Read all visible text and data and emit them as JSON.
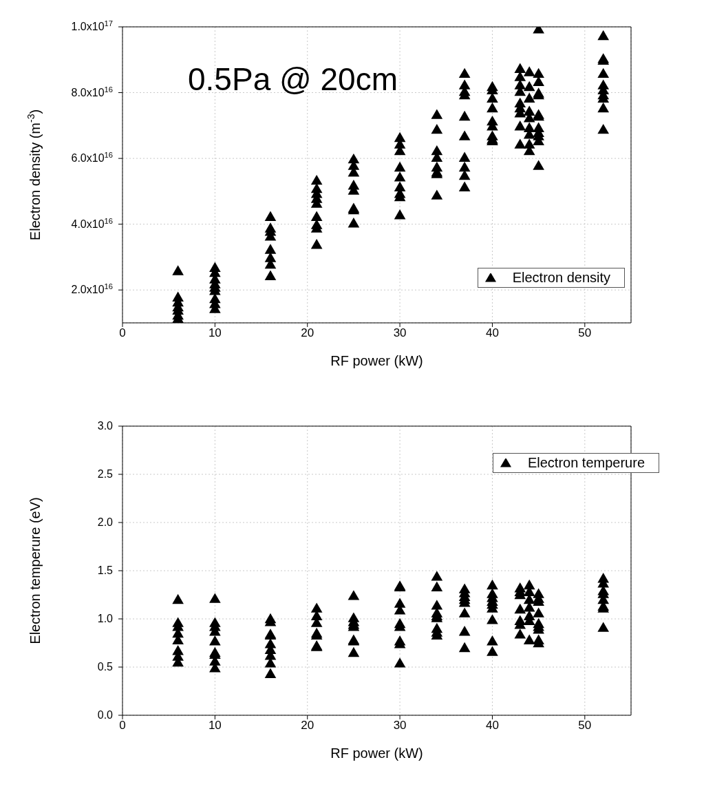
{
  "chart_data": [
    {
      "type": "scatter",
      "xlabel": "RF power (kW)",
      "ylabel": "Electron density (m$^{-3}$)",
      "annotations": [
        "0.5Pa @ 20cm"
      ],
      "xlim": [
        0,
        55
      ],
      "xticks": [
        0,
        10,
        20,
        30,
        40,
        50
      ],
      "ylim": [
        1e+16,
        1e+17
      ],
      "yticks": [
        {
          "value": 2e+16,
          "label": "2.0x10$^{16}$"
        },
        {
          "value": 4e+16,
          "label": "4.0x10$^{16}$"
        },
        {
          "value": 6e+16,
          "label": "6.0x10$^{16}$"
        },
        {
          "value": 8e+16,
          "label": "8.0x10$^{16}$"
        },
        {
          "value": 1e+17,
          "label": "1.0x10$^{17}$"
        }
      ],
      "grid": true,
      "legend": "bottom right",
      "marker": "triangle",
      "series": [
        {
          "name": "Electron density",
          "color": "#000000",
          "x": [
            6,
            6,
            6,
            6,
            6,
            6,
            6,
            10,
            10,
            10,
            10,
            10,
            10,
            10,
            10,
            10,
            16,
            16,
            16,
            16,
            16,
            16,
            16,
            16,
            21,
            21,
            21,
            21,
            21,
            21,
            21,
            21,
            21,
            25,
            25,
            25,
            25,
            25,
            25,
            25,
            25,
            30,
            30,
            30,
            30,
            30,
            30,
            30,
            30,
            30,
            34,
            34,
            34,
            34,
            34,
            34,
            34,
            34,
            37,
            37,
            37,
            37,
            37,
            37,
            37,
            37,
            37,
            37,
            40,
            40,
            40,
            40,
            40,
            40,
            40,
            40,
            40,
            43,
            43,
            43,
            43,
            43,
            43,
            43,
            43,
            43,
            44,
            44,
            44,
            44,
            44,
            44,
            44,
            44,
            44,
            45,
            45,
            45,
            45,
            45,
            45,
            45,
            45,
            45,
            45,
            45,
            45,
            52,
            52,
            52,
            52,
            52,
            52,
            52,
            52,
            52,
            52
          ],
          "values": [
            2.55e+16,
            1.75e+16,
            1.6e+16,
            1.45e+16,
            1.35e+16,
            1.2e+16,
            1.1e+16,
            2.65e+16,
            2.5e+16,
            2.3e+16,
            2.15e+16,
            2.05e+16,
            1.95e+16,
            1.7e+16,
            1.55e+16,
            1.4e+16,
            4.2e+16,
            3.85e+16,
            3.75e+16,
            3.6e+16,
            3.2e+16,
            2.95e+16,
            2.75e+16,
            2.4e+16,
            5.3e+16,
            5.05e+16,
            4.9e+16,
            4.75e+16,
            4.6e+16,
            4.2e+16,
            3.95e+16,
            3.85e+16,
            3.35e+16,
            5.95e+16,
            5.75e+16,
            5.55e+16,
            5.15e+16,
            5e+16,
            4.45e+16,
            4.4e+16,
            4e+16,
            6.6e+16,
            6.4e+16,
            6.2e+16,
            5.7e+16,
            5.4e+16,
            5.1e+16,
            4.9e+16,
            4.8e+16,
            4.25e+16,
            7.3e+16,
            6.85e+16,
            6.2e+16,
            6e+16,
            5.7e+16,
            5.55e+16,
            5.5e+16,
            4.85e+16,
            8.55e+16,
            8.2e+16,
            8e+16,
            7.9e+16,
            7.25e+16,
            6.65e+16,
            6e+16,
            5.7e+16,
            5.45e+16,
            5.1e+16,
            8.15e+16,
            8.05e+16,
            7.8e+16,
            7.5e+16,
            7.1e+16,
            6.95e+16,
            6.65e+16,
            6.55e+16,
            6.5e+16,
            8.7e+16,
            8.45e+16,
            8.2e+16,
            8e+16,
            7.65e+16,
            7.5e+16,
            7.35e+16,
            6.95e+16,
            6.4e+16,
            8.6e+16,
            8.15e+16,
            7.8e+16,
            7.4e+16,
            7.2e+16,
            6.9e+16,
            6.7e+16,
            6.4e+16,
            6.2e+16,
            9.9e+16,
            8.55e+16,
            8.3e+16,
            7.95e+16,
            7.9e+16,
            7.3e+16,
            7.25e+16,
            6.9e+16,
            6.75e+16,
            6.65e+16,
            6.5e+16,
            5.75e+16,
            9.7e+16,
            9e+16,
            8.95e+16,
            8.55e+16,
            8.2e+16,
            8.05e+16,
            7.9e+16,
            7.8e+16,
            7.5e+16,
            6.85e+16
          ]
        }
      ]
    },
    {
      "type": "scatter",
      "xlabel": "RF power (kW)",
      "ylabel": "Electron temperure (eV)",
      "xlim": [
        0,
        55
      ],
      "xticks": [
        0,
        10,
        20,
        30,
        40,
        50
      ],
      "ylim": [
        0,
        3
      ],
      "yticks": [
        {
          "value": 0,
          "label": "0.0"
        },
        {
          "value": 0.5,
          "label": "0.5"
        },
        {
          "value": 1,
          "label": "1.0"
        },
        {
          "value": 1.5,
          "label": "1.5"
        },
        {
          "value": 2,
          "label": "2.0"
        },
        {
          "value": 2.5,
          "label": "2.5"
        },
        {
          "value": 3,
          "label": "3.0"
        }
      ],
      "grid": true,
      "legend": "top right",
      "marker": "triangle",
      "series": [
        {
          "name": "Electron temperure",
          "color": "#000000",
          "x": [
            6,
            6,
            6,
            6,
            6,
            6,
            6,
            6,
            10,
            10,
            10,
            10,
            10,
            10,
            10,
            10,
            10,
            16,
            16,
            16,
            16,
            16,
            16,
            16,
            16,
            16,
            21,
            21,
            21,
            21,
            21,
            21,
            21,
            25,
            25,
            25,
            25,
            25,
            25,
            25,
            25,
            30,
            30,
            30,
            30,
            30,
            30,
            30,
            30,
            30,
            34,
            34,
            34,
            34,
            34,
            34,
            34,
            34,
            34,
            37,
            37,
            37,
            37,
            37,
            37,
            37,
            37,
            40,
            40,
            40,
            40,
            40,
            40,
            40,
            40,
            40,
            43,
            43,
            43,
            43,
            43,
            43,
            43,
            44,
            44,
            44,
            44,
            44,
            44,
            44,
            45,
            45,
            45,
            45,
            45,
            45,
            45,
            45,
            45,
            52,
            52,
            52,
            52,
            52,
            52,
            52,
            52
          ],
          "values": [
            1.19,
            0.95,
            0.91,
            0.84,
            0.77,
            0.66,
            0.6,
            0.54,
            1.2,
            0.95,
            0.91,
            0.86,
            0.76,
            0.64,
            0.62,
            0.55,
            0.48,
            0.99,
            0.96,
            0.83,
            0.82,
            0.73,
            0.67,
            0.61,
            0.53,
            0.42,
            1.1,
            1.02,
            0.95,
            0.84,
            0.82,
            0.71,
            0.7,
            1.23,
            1.0,
            0.96,
            0.93,
            0.91,
            0.77,
            0.76,
            0.64,
            1.33,
            1.32,
            1.15,
            1.08,
            0.94,
            0.91,
            0.76,
            0.73,
            0.53,
            1.43,
            1.32,
            1.13,
            1.05,
            1.02,
            1.0,
            0.89,
            0.85,
            0.82,
            1.3,
            1.26,
            1.22,
            1.19,
            1.16,
            1.05,
            0.86,
            0.69,
            1.34,
            1.25,
            1.21,
            1.17,
            1.14,
            1.1,
            0.98,
            0.76,
            0.65,
            1.31,
            1.27,
            1.24,
            1.09,
            0.97,
            0.93,
            0.83,
            1.34,
            1.27,
            1.19,
            1.11,
            1.02,
            0.97,
            0.77,
            1.25,
            1.2,
            1.17,
            1.05,
            0.94,
            0.91,
            0.88,
            0.77,
            0.74,
            1.41,
            1.36,
            1.28,
            1.25,
            1.19,
            1.12,
            1.1,
            0.9
          ]
        }
      ]
    }
  ]
}
